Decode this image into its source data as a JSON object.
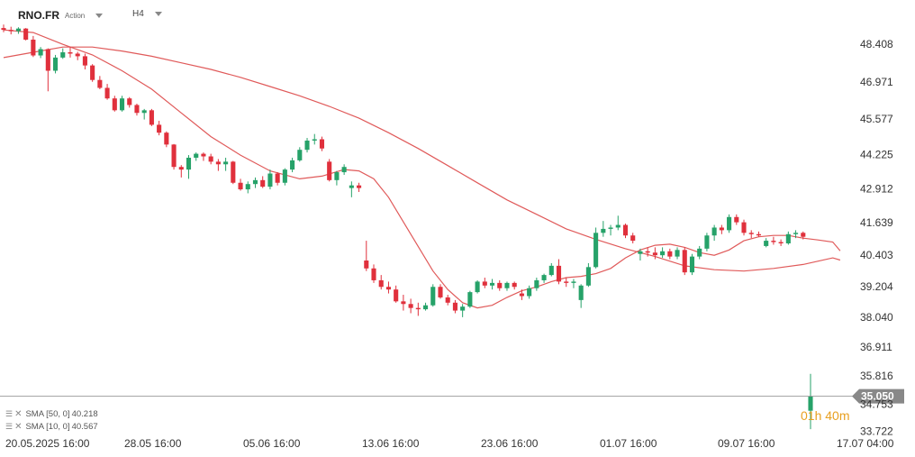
{
  "header": {
    "symbol": "RNO.FR",
    "instrument_type": "Action",
    "timeframe": "H4"
  },
  "indicators": [
    {
      "label": "SMA [50, 0]",
      "value": "40.218"
    },
    {
      "label": "SMA [10, 0]",
      "value": "40.567"
    }
  ],
  "countdown": "01h 40m",
  "colors": {
    "up": "#26a269",
    "down": "#e0303c",
    "sma": "#e05a5a",
    "price_tag": "#888888"
  },
  "chart_data": {
    "type": "candlestick",
    "price_ticks": [
      "48.408",
      "46.971",
      "45.577",
      "44.225",
      "42.912",
      "41.639",
      "40.403",
      "39.204",
      "38.040",
      "36.911",
      "35.816",
      "34.753",
      "33.722"
    ],
    "ylim": [
      33.6,
      49.4
    ],
    "x_labels": [
      "20.05.2025  16:00",
      "28.05  16:00",
      "05.06  16:00",
      "13.06  16:00",
      "23.06  16:00",
      "01.07  16:00",
      "09.07  16:00",
      "17.07  04:00"
    ],
    "last_price": "35.050",
    "candles": [
      [
        49.02,
        49.15,
        48.86,
        48.95
      ],
      [
        48.95,
        49.07,
        48.78,
        48.9
      ],
      [
        48.9,
        49.05,
        48.8,
        49.0
      ],
      [
        49.0,
        49.02,
        48.55,
        48.58
      ],
      [
        48.58,
        48.72,
        47.92,
        47.98
      ],
      [
        47.98,
        48.3,
        47.88,
        48.22
      ],
      [
        48.22,
        48.25,
        46.62,
        47.4
      ],
      [
        47.4,
        48.0,
        47.3,
        47.9
      ],
      [
        47.9,
        48.25,
        47.85,
        48.1
      ],
      [
        48.1,
        48.3,
        47.9,
        48.05
      ],
      [
        48.05,
        48.12,
        47.8,
        47.95
      ],
      [
        47.95,
        48.05,
        47.45,
        47.6
      ],
      [
        47.6,
        47.65,
        46.98,
        47.05
      ],
      [
        47.05,
        47.2,
        46.7,
        46.75
      ],
      [
        46.75,
        46.9,
        46.3,
        46.35
      ],
      [
        46.35,
        46.45,
        45.85,
        45.9
      ],
      [
        45.9,
        46.45,
        45.85,
        46.35
      ],
      [
        46.35,
        46.4,
        46.0,
        46.1
      ],
      [
        46.1,
        46.15,
        45.7,
        45.8
      ],
      [
        45.8,
        45.95,
        45.55,
        45.9
      ],
      [
        45.9,
        45.95,
        45.3,
        45.35
      ],
      [
        45.35,
        45.5,
        44.95,
        45.05
      ],
      [
        45.05,
        45.1,
        44.5,
        44.6
      ],
      [
        44.6,
        44.62,
        43.65,
        43.75
      ],
      [
        43.75,
        43.82,
        43.35,
        43.65
      ],
      [
        43.65,
        44.2,
        43.3,
        44.1
      ],
      [
        44.1,
        44.3,
        43.98,
        44.25
      ],
      [
        44.25,
        44.3,
        43.98,
        44.15
      ],
      [
        44.15,
        44.25,
        43.85,
        43.95
      ],
      [
        43.95,
        44.05,
        43.6,
        43.85
      ],
      [
        43.85,
        44.1,
        43.6,
        43.95
      ],
      [
        43.95,
        43.98,
        43.1,
        43.15
      ],
      [
        43.15,
        43.3,
        42.85,
        42.9
      ],
      [
        42.9,
        43.2,
        42.75,
        43.1
      ],
      [
        43.1,
        43.35,
        42.95,
        43.25
      ],
      [
        43.25,
        43.4,
        42.95,
        43.0
      ],
      [
        43.0,
        43.65,
        42.9,
        43.5
      ],
      [
        43.5,
        43.55,
        43.05,
        43.15
      ],
      [
        43.15,
        43.7,
        43.05,
        43.65
      ],
      [
        43.65,
        44.1,
        43.55,
        44.0
      ],
      [
        44.0,
        44.5,
        43.95,
        44.4
      ],
      [
        44.4,
        44.85,
        44.3,
        44.75
      ],
      [
        44.75,
        45.0,
        44.6,
        44.8
      ],
      [
        44.8,
        44.9,
        44.35,
        44.45
      ],
      [
        43.95,
        44.05,
        43.2,
        43.25
      ],
      [
        43.25,
        43.6,
        43.05,
        43.55
      ],
      [
        43.55,
        43.85,
        43.45,
        43.75
      ],
      [
        42.95,
        43.2,
        42.6,
        43.05
      ],
      [
        43.05,
        43.15,
        42.8,
        42.95
      ],
      [
        40.2,
        40.95,
        39.8,
        39.9
      ],
      [
        39.9,
        40.05,
        39.35,
        39.45
      ],
      [
        39.45,
        39.65,
        39.1,
        39.2
      ],
      [
        39.2,
        39.4,
        38.95,
        39.1
      ],
      [
        39.1,
        39.25,
        38.6,
        38.65
      ],
      [
        38.65,
        38.9,
        38.3,
        38.55
      ],
      [
        38.55,
        38.75,
        38.2,
        38.4
      ],
      [
        38.4,
        38.6,
        38.1,
        38.35
      ],
      [
        38.35,
        38.6,
        38.3,
        38.5
      ],
      [
        38.5,
        39.3,
        38.45,
        39.2
      ],
      [
        39.2,
        39.3,
        38.75,
        38.8
      ],
      [
        38.8,
        38.9,
        38.5,
        38.6
      ],
      [
        38.6,
        38.7,
        38.2,
        38.3
      ],
      [
        38.3,
        38.55,
        38.05,
        38.45
      ],
      [
        38.45,
        39.05,
        38.4,
        39.0
      ],
      [
        39.0,
        39.45,
        38.95,
        39.4
      ],
      [
        39.4,
        39.55,
        39.15,
        39.25
      ],
      [
        39.25,
        39.5,
        39.1,
        39.35
      ],
      [
        39.35,
        39.45,
        39.05,
        39.15
      ],
      [
        39.15,
        39.4,
        39.05,
        39.35
      ],
      [
        39.35,
        39.4,
        39.1,
        39.2
      ],
      [
        38.95,
        39.1,
        38.7,
        38.85
      ],
      [
        38.85,
        39.25,
        38.75,
        39.15
      ],
      [
        39.15,
        39.55,
        39.05,
        39.45
      ],
      [
        39.45,
        39.7,
        39.35,
        39.65
      ],
      [
        39.65,
        40.1,
        39.6,
        40.0
      ],
      [
        40.0,
        40.25,
        39.3,
        39.4
      ],
      [
        39.4,
        39.55,
        39.2,
        39.35
      ],
      [
        39.35,
        39.5,
        39.15,
        39.4
      ],
      [
        38.7,
        39.3,
        38.4,
        39.25
      ],
      [
        39.25,
        40.1,
        39.2,
        39.95
      ],
      [
        39.95,
        41.45,
        39.9,
        41.25
      ],
      [
        41.25,
        41.7,
        41.1,
        41.4
      ],
      [
        41.4,
        41.55,
        41.15,
        41.45
      ],
      [
        41.45,
        41.9,
        41.35,
        41.55
      ],
      [
        41.55,
        41.6,
        41.05,
        41.15
      ],
      [
        41.15,
        41.25,
        40.85,
        40.95
      ],
      [
        40.45,
        40.65,
        40.2,
        40.55
      ],
      [
        40.55,
        40.7,
        40.35,
        40.5
      ],
      [
        40.5,
        40.7,
        40.25,
        40.4
      ],
      [
        40.4,
        40.7,
        40.3,
        40.55
      ],
      [
        40.55,
        40.65,
        40.25,
        40.35
      ],
      [
        40.35,
        40.7,
        40.25,
        40.6
      ],
      [
        40.6,
        40.7,
        39.65,
        39.75
      ],
      [
        39.75,
        40.45,
        39.65,
        40.35
      ],
      [
        40.35,
        40.75,
        40.25,
        40.65
      ],
      [
        40.65,
        41.25,
        40.55,
        41.15
      ],
      [
        41.15,
        41.55,
        40.95,
        41.45
      ],
      [
        41.45,
        41.55,
        41.2,
        41.35
      ],
      [
        41.35,
        41.95,
        41.25,
        41.85
      ],
      [
        41.85,
        41.95,
        41.55,
        41.65
      ],
      [
        41.65,
        41.75,
        41.15,
        41.25
      ],
      [
        41.25,
        41.35,
        41.05,
        41.2
      ],
      [
        41.2,
        41.3,
        41.1,
        41.15
      ],
      [
        40.75,
        41.05,
        40.7,
        40.95
      ],
      [
        40.95,
        41.1,
        40.8,
        40.9
      ],
      [
        40.9,
        41.0,
        40.75,
        40.85
      ],
      [
        40.85,
        41.3,
        40.8,
        41.2
      ],
      [
        41.2,
        41.35,
        41.05,
        41.25
      ],
      [
        41.25,
        41.3,
        41.0,
        41.1
      ],
      [
        34.5,
        35.9,
        33.8,
        35.05
      ]
    ],
    "sma50": [
      [
        0,
        47.9
      ],
      [
        4,
        48.1
      ],
      [
        8,
        48.3
      ],
      [
        12,
        48.3
      ],
      [
        16,
        48.15
      ],
      [
        20,
        47.95
      ],
      [
        24,
        47.7
      ],
      [
        28,
        47.45
      ],
      [
        32,
        47.15
      ],
      [
        36,
        46.8
      ],
      [
        40,
        46.45
      ],
      [
        44,
        46.05
      ],
      [
        48,
        45.6
      ],
      [
        52,
        45.05
      ],
      [
        56,
        44.45
      ],
      [
        60,
        43.8
      ],
      [
        64,
        43.15
      ],
      [
        68,
        42.5
      ],
      [
        72,
        41.95
      ],
      [
        76,
        41.4
      ],
      [
        80,
        41.0
      ],
      [
        84,
        40.65
      ],
      [
        88,
        40.35
      ],
      [
        92,
        40.0
      ],
      [
        96,
        39.85
      ],
      [
        100,
        39.8
      ],
      [
        104,
        39.9
      ],
      [
        108,
        40.05
      ],
      [
        112,
        40.3
      ],
      [
        113,
        40.218
      ]
    ],
    "sma10": [
      [
        0,
        48.95
      ],
      [
        4,
        48.85
      ],
      [
        8,
        48.4
      ],
      [
        12,
        48.0
      ],
      [
        16,
        47.4
      ],
      [
        20,
        46.7
      ],
      [
        24,
        45.8
      ],
      [
        28,
        44.9
      ],
      [
        32,
        44.2
      ],
      [
        36,
        43.6
      ],
      [
        40,
        43.3
      ],
      [
        43,
        43.4
      ],
      [
        46,
        43.65
      ],
      [
        48,
        43.6
      ],
      [
        50,
        43.3
      ],
      [
        52,
        42.6
      ],
      [
        55,
        41.2
      ],
      [
        58,
        39.8
      ],
      [
        60,
        39.1
      ],
      [
        62,
        38.6
      ],
      [
        64,
        38.4
      ],
      [
        66,
        38.5
      ],
      [
        68,
        38.8
      ],
      [
        70,
        39.05
      ],
      [
        72,
        39.2
      ],
      [
        74,
        39.4
      ],
      [
        76,
        39.55
      ],
      [
        78,
        39.6
      ],
      [
        80,
        39.7
      ],
      [
        82,
        39.9
      ],
      [
        84,
        40.3
      ],
      [
        86,
        40.6
      ],
      [
        88,
        40.78
      ],
      [
        90,
        40.82
      ],
      [
        92,
        40.7
      ],
      [
        94,
        40.5
      ],
      [
        96,
        40.4
      ],
      [
        98,
        40.6
      ],
      [
        100,
        40.95
      ],
      [
        102,
        41.1
      ],
      [
        104,
        41.15
      ],
      [
        106,
        41.15
      ],
      [
        108,
        41.05
      ],
      [
        110,
        40.98
      ],
      [
        112,
        40.9
      ],
      [
        113,
        40.567
      ]
    ]
  }
}
